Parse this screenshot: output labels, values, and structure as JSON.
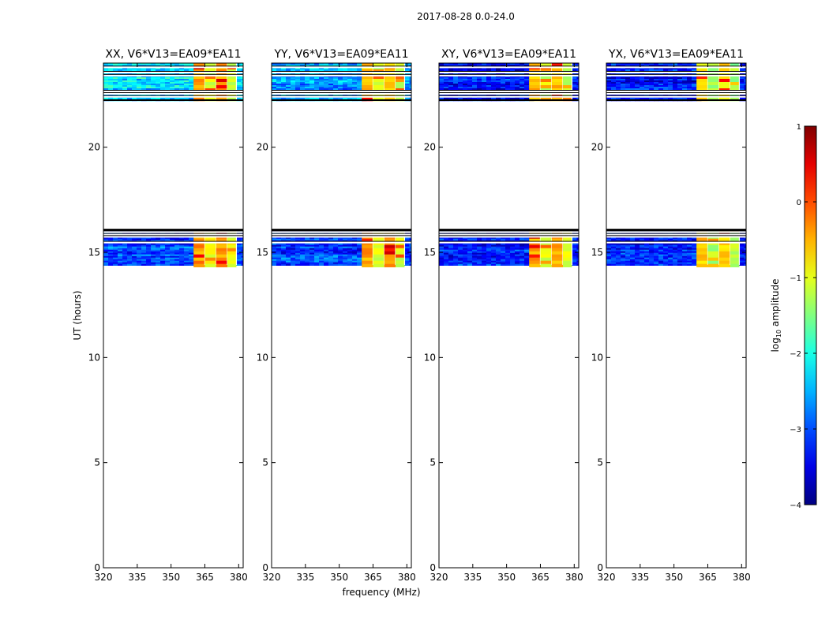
{
  "chart_data": {
    "type": "heatmap",
    "title": "2017-08-28 0.0-24.0",
    "xlabel": "frequency (MHz)",
    "ylabel": "UT (hours)",
    "xlim": [
      320,
      382
    ],
    "ylim": [
      0,
      24
    ],
    "xticks": [
      320,
      335,
      350,
      365,
      380
    ],
    "yticks": [
      0,
      5,
      10,
      15,
      20
    ],
    "colorbar": {
      "label_prefix": "log",
      "label_sub": "10",
      "label_suffix": " amplitude",
      "vmin": -4,
      "vmax": 1,
      "ticks": [
        -4,
        -3,
        -2,
        -1,
        0,
        1
      ],
      "tick_labels": [
        "−4",
        "−3",
        "−2",
        "−1",
        "0",
        "1"
      ],
      "colormap": "jet"
    },
    "panels": [
      {
        "pol": "XX",
        "title": "XX, V6*V13=EA09*EA11",
        "blocks": [
          {
            "ut": [
              22.2,
              24.0
            ],
            "background": -2.3,
            "rfi_band": [
              360,
              379
            ],
            "rfi_level": -0.7
          },
          {
            "ut": [
              14.4,
              16.1
            ],
            "background": -3.0,
            "rfi_band": [
              360,
              379
            ],
            "rfi_level": -0.6
          }
        ],
        "stripes_mhz": [
          360,
          365,
          370,
          375,
          379
        ]
      },
      {
        "pol": "YY",
        "title": "YY, V6*V13=EA09*EA11",
        "blocks": [
          {
            "ut": [
              22.2,
              24.0
            ],
            "background": -2.6,
            "rfi_band": [
              360,
              379
            ],
            "rfi_level": -0.8
          },
          {
            "ut": [
              14.4,
              16.1
            ],
            "background": -3.1,
            "rfi_band": [
              360,
              379
            ],
            "rfi_level": -0.7
          }
        ],
        "stripes_mhz": [
          360,
          365,
          370,
          375,
          379
        ]
      },
      {
        "pol": "XY",
        "title": "XY, V6*V13=EA09*EA11",
        "blocks": [
          {
            "ut": [
              22.2,
              24.0
            ],
            "background": -3.3,
            "rfi_band": [
              360,
              379
            ],
            "rfi_level": -0.8
          },
          {
            "ut": [
              14.4,
              16.1
            ],
            "background": -3.3,
            "rfi_band": [
              360,
              379
            ],
            "rfi_level": -0.7
          }
        ],
        "stripes_mhz": [
          360,
          365,
          370,
          375,
          379
        ]
      },
      {
        "pol": "YX",
        "title": "YX, V6*V13=EA09*EA11",
        "blocks": [
          {
            "ut": [
              22.2,
              24.0
            ],
            "background": -3.3,
            "rfi_band": [
              360,
              379
            ],
            "rfi_level": -1.0
          },
          {
            "ut": [
              14.4,
              16.1
            ],
            "background": -3.3,
            "rfi_band": [
              360,
              379
            ],
            "rfi_level": -0.9
          }
        ],
        "stripes_mhz": [
          360,
          365,
          370,
          375,
          379
        ]
      }
    ],
    "gaps_ut": [
      [
        16.1,
        22.2
      ],
      [
        0,
        14.4
      ]
    ]
  }
}
